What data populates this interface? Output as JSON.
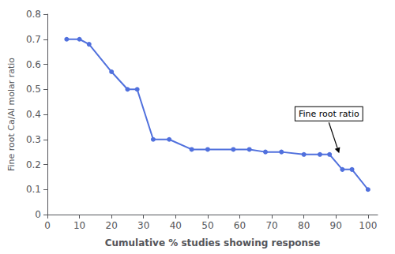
{
  "chart_data": {
    "type": "line",
    "x": [
      6,
      10,
      13,
      20,
      25,
      28,
      33,
      38,
      45,
      50,
      58,
      63,
      68,
      73,
      80,
      85,
      88,
      92,
      95,
      100
    ],
    "values": [
      0.7,
      0.7,
      0.68,
      0.57,
      0.5,
      0.5,
      0.3,
      0.3,
      0.26,
      0.26,
      0.26,
      0.26,
      0.25,
      0.25,
      0.24,
      0.24,
      0.24,
      0.18,
      0.18,
      0.1
    ],
    "xlabel": "Cumulative % studies showing response",
    "ylabel": "Fine root Ca/Al molar ratio",
    "xlim": [
      0,
      103
    ],
    "ylim": [
      0,
      0.8
    ],
    "xticks": [
      0,
      10,
      20,
      30,
      40,
      50,
      60,
      70,
      80,
      90,
      100
    ],
    "yticks": [
      0,
      0.1,
      0.2,
      0.3,
      0.4,
      0.5,
      0.6,
      0.7,
      0.8
    ],
    "annotations": [
      {
        "text": "Fine root ratio",
        "x": 91,
        "y": 0.245
      }
    ],
    "marker": "circle",
    "grid": false
  }
}
